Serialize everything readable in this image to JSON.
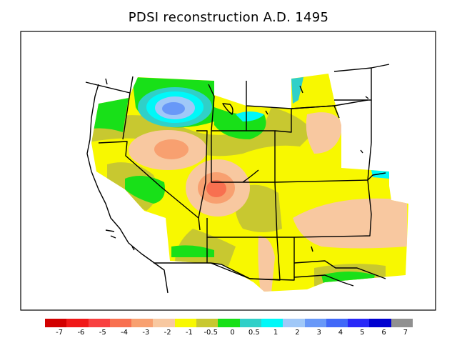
{
  "title": "PDSI reconstruction A.D. 1495",
  "legend": {
    "colors": [
      "#d20000",
      "#f01818",
      "#f84040",
      "#f87050",
      "#f8a070",
      "#f8c8a0",
      "#f8f800",
      "#c8c830",
      "#18e018",
      "#30d0c8",
      "#00f8f8",
      "#a0c8f8",
      "#6898f8",
      "#4068f8",
      "#2828f8",
      "#0000d0",
      "#909090"
    ],
    "ticks": [
      "-7",
      "-6",
      "-5",
      "-4",
      "-3",
      "-2",
      "-1",
      "-0.5",
      "0",
      "0.5",
      "1",
      "2",
      "3",
      "4",
      "5",
      "6",
      "7"
    ]
  },
  "palette": {
    "yellow": "#f8f800",
    "olive": "#c8c830",
    "peach": "#f8c8a0",
    "salmon": "#f8a070",
    "orange": "#f87050",
    "green": "#18e018",
    "teal": "#30d0c8",
    "cyan": "#00f8f8",
    "lightblue": "#a0c8f8",
    "blue": "#6898f8"
  }
}
